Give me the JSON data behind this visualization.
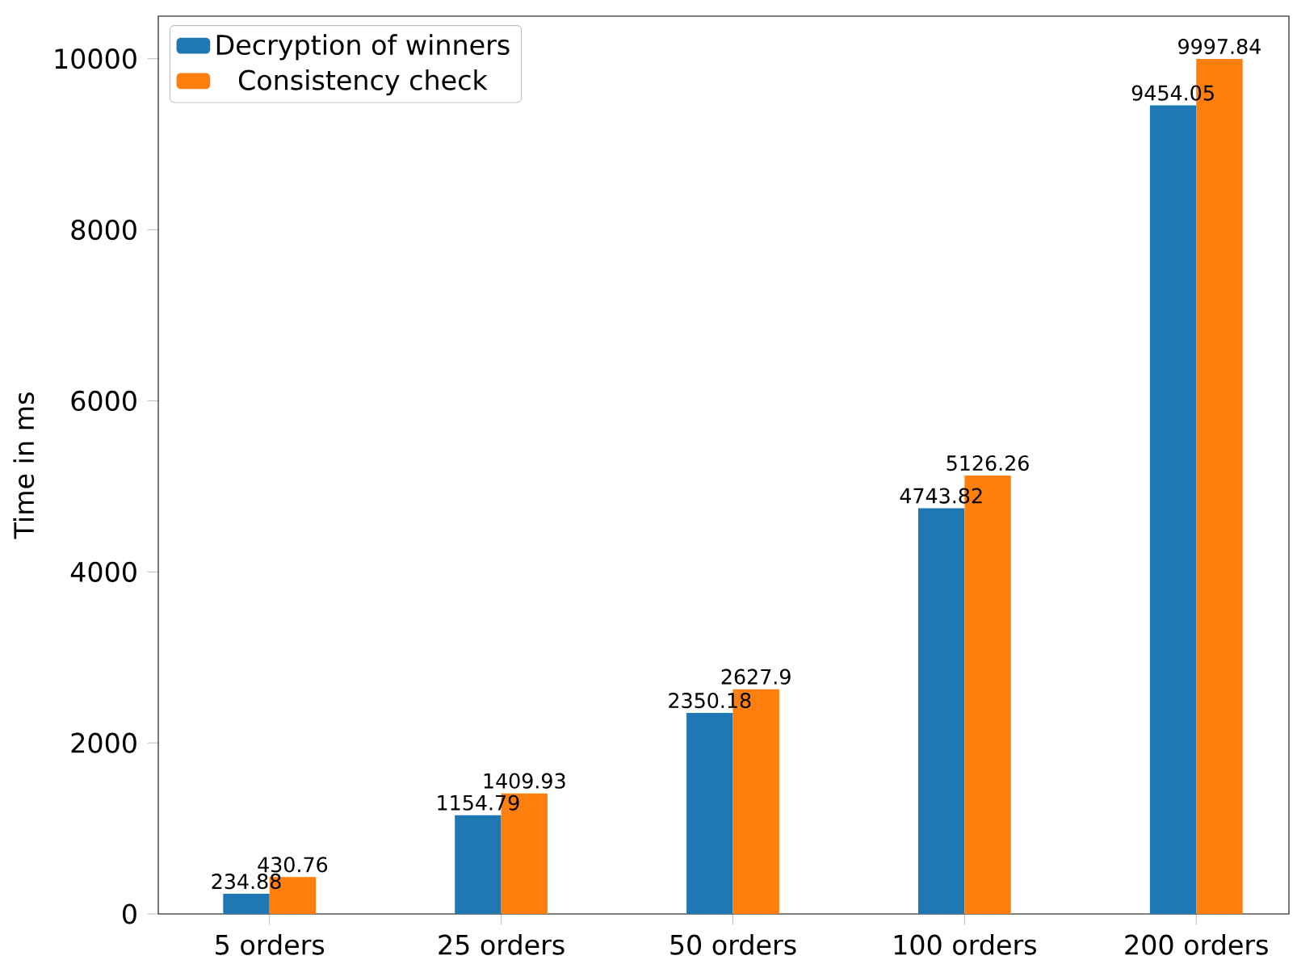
{
  "chart_data": {
    "type": "bar",
    "ylabel": "Time in ms",
    "categories": [
      "5 orders",
      "25 orders",
      "50 orders",
      "100 orders",
      "200 orders"
    ],
    "series": [
      {
        "name": "Decryption of winners",
        "color": "#1f77b4",
        "values": [
          234.88,
          1154.79,
          2350.18,
          4743.82,
          9454.05
        ],
        "value_labels": [
          "234.88",
          "1154.79",
          "2350.18",
          "4743.82",
          "9454.05"
        ]
      },
      {
        "name": "Consistency check",
        "color": "#ff7f0e",
        "values": [
          430.76,
          1409.93,
          2627.9,
          5126.26,
          9997.84
        ],
        "value_labels": [
          "430.76",
          "1409.93",
          "2627.9",
          "5126.26",
          "9997.84"
        ]
      }
    ],
    "ylim": [
      0,
      10498
    ],
    "yticks": [
      0,
      2000,
      4000,
      6000,
      8000,
      10000
    ],
    "legend": "top left",
    "grid": false
  }
}
